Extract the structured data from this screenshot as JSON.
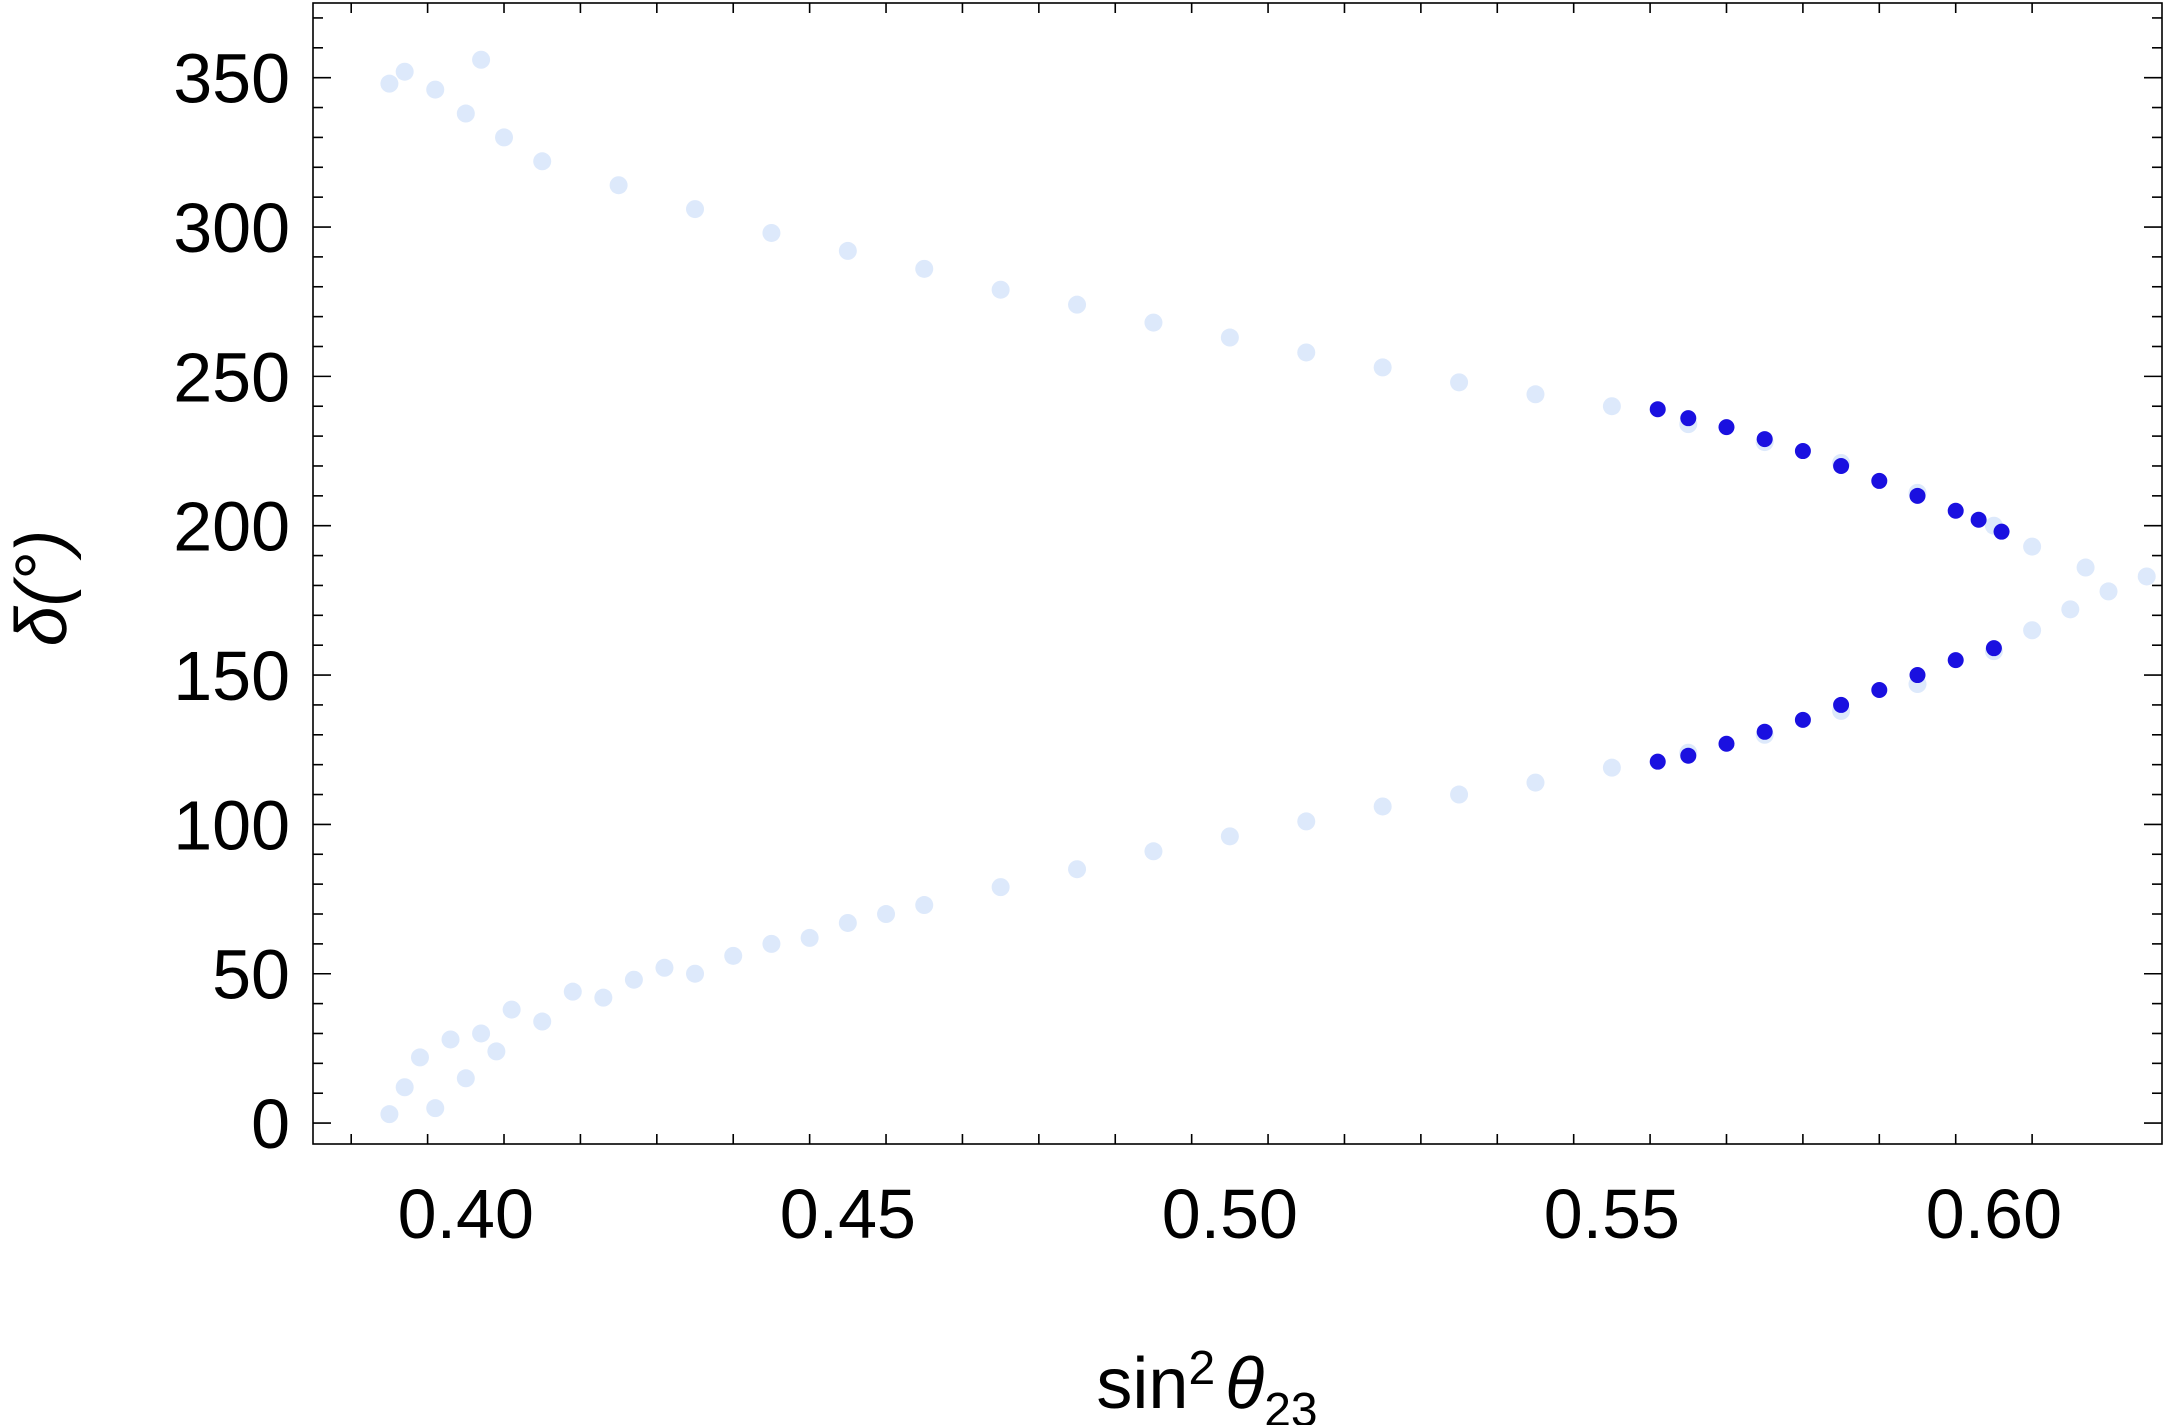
{
  "chart_data": {
    "type": "scatter",
    "title": "",
    "xlabel": {
      "base": "sin",
      "sup": "2",
      "symbol": "θ",
      "sub": "23"
    },
    "ylabel": "δ(°)",
    "xlim": [
      0.38,
      0.622
    ],
    "ylim": [
      -7,
      375
    ],
    "x_ticks": [
      0.4,
      0.45,
      0.5,
      0.55,
      0.6
    ],
    "x_tick_labels": [
      "0.40",
      "0.45",
      "0.50",
      "0.55",
      "0.60"
    ],
    "y_ticks": [
      0,
      50,
      100,
      150,
      200,
      250,
      300,
      350
    ],
    "y_tick_labels": [
      "0",
      "50",
      "100",
      "150",
      "200",
      "250",
      "300",
      "350"
    ],
    "grid": false,
    "legend": "none",
    "series": [
      {
        "color": "#dde9fb",
        "marker": "small-dot",
        "points": [
          [
            0.39,
            3
          ],
          [
            0.392,
            12
          ],
          [
            0.394,
            22
          ],
          [
            0.396,
            5
          ],
          [
            0.398,
            28
          ],
          [
            0.4,
            15
          ],
          [
            0.402,
            30
          ],
          [
            0.404,
            24
          ],
          [
            0.406,
            38
          ],
          [
            0.41,
            34
          ],
          [
            0.414,
            44
          ],
          [
            0.418,
            42
          ],
          [
            0.422,
            48
          ],
          [
            0.426,
            52
          ],
          [
            0.43,
            50
          ],
          [
            0.435,
            56
          ],
          [
            0.44,
            60
          ],
          [
            0.445,
            62
          ],
          [
            0.45,
            67
          ],
          [
            0.455,
            70
          ],
          [
            0.46,
            73
          ],
          [
            0.47,
            79
          ],
          [
            0.48,
            85
          ],
          [
            0.49,
            91
          ],
          [
            0.5,
            96
          ],
          [
            0.51,
            101
          ],
          [
            0.52,
            106
          ],
          [
            0.53,
            110
          ],
          [
            0.54,
            114
          ],
          [
            0.55,
            119
          ],
          [
            0.56,
            124
          ],
          [
            0.57,
            130
          ],
          [
            0.58,
            138
          ],
          [
            0.59,
            147
          ],
          [
            0.6,
            158
          ],
          [
            0.605,
            165
          ],
          [
            0.61,
            172
          ],
          [
            0.615,
            178
          ],
          [
            0.62,
            183
          ],
          [
            0.612,
            186
          ],
          [
            0.605,
            193
          ],
          [
            0.6,
            200
          ],
          [
            0.59,
            211
          ],
          [
            0.58,
            221
          ],
          [
            0.57,
            228
          ],
          [
            0.56,
            234
          ],
          [
            0.55,
            240
          ],
          [
            0.54,
            244
          ],
          [
            0.53,
            248
          ],
          [
            0.52,
            253
          ],
          [
            0.51,
            258
          ],
          [
            0.5,
            263
          ],
          [
            0.49,
            268
          ],
          [
            0.48,
            274
          ],
          [
            0.47,
            279
          ],
          [
            0.46,
            286
          ],
          [
            0.45,
            292
          ],
          [
            0.44,
            298
          ],
          [
            0.43,
            306
          ],
          [
            0.42,
            314
          ],
          [
            0.41,
            322
          ],
          [
            0.405,
            330
          ],
          [
            0.4,
            338
          ],
          [
            0.396,
            346
          ],
          [
            0.392,
            352
          ],
          [
            0.39,
            348
          ],
          [
            0.402,
            356
          ]
        ]
      },
      {
        "color": "#1a10e0",
        "marker": "large-dot",
        "points": [
          [
            0.556,
            239
          ],
          [
            0.56,
            236
          ],
          [
            0.565,
            233
          ],
          [
            0.57,
            229
          ],
          [
            0.575,
            225
          ],
          [
            0.58,
            220
          ],
          [
            0.585,
            215
          ],
          [
            0.59,
            210
          ],
          [
            0.595,
            205
          ],
          [
            0.598,
            202
          ],
          [
            0.601,
            198
          ],
          [
            0.556,
            121
          ],
          [
            0.56,
            123
          ],
          [
            0.565,
            127
          ],
          [
            0.57,
            131
          ],
          [
            0.575,
            135
          ],
          [
            0.58,
            140
          ],
          [
            0.585,
            145
          ],
          [
            0.59,
            150
          ],
          [
            0.595,
            155
          ],
          [
            0.6,
            159
          ]
        ]
      }
    ]
  }
}
